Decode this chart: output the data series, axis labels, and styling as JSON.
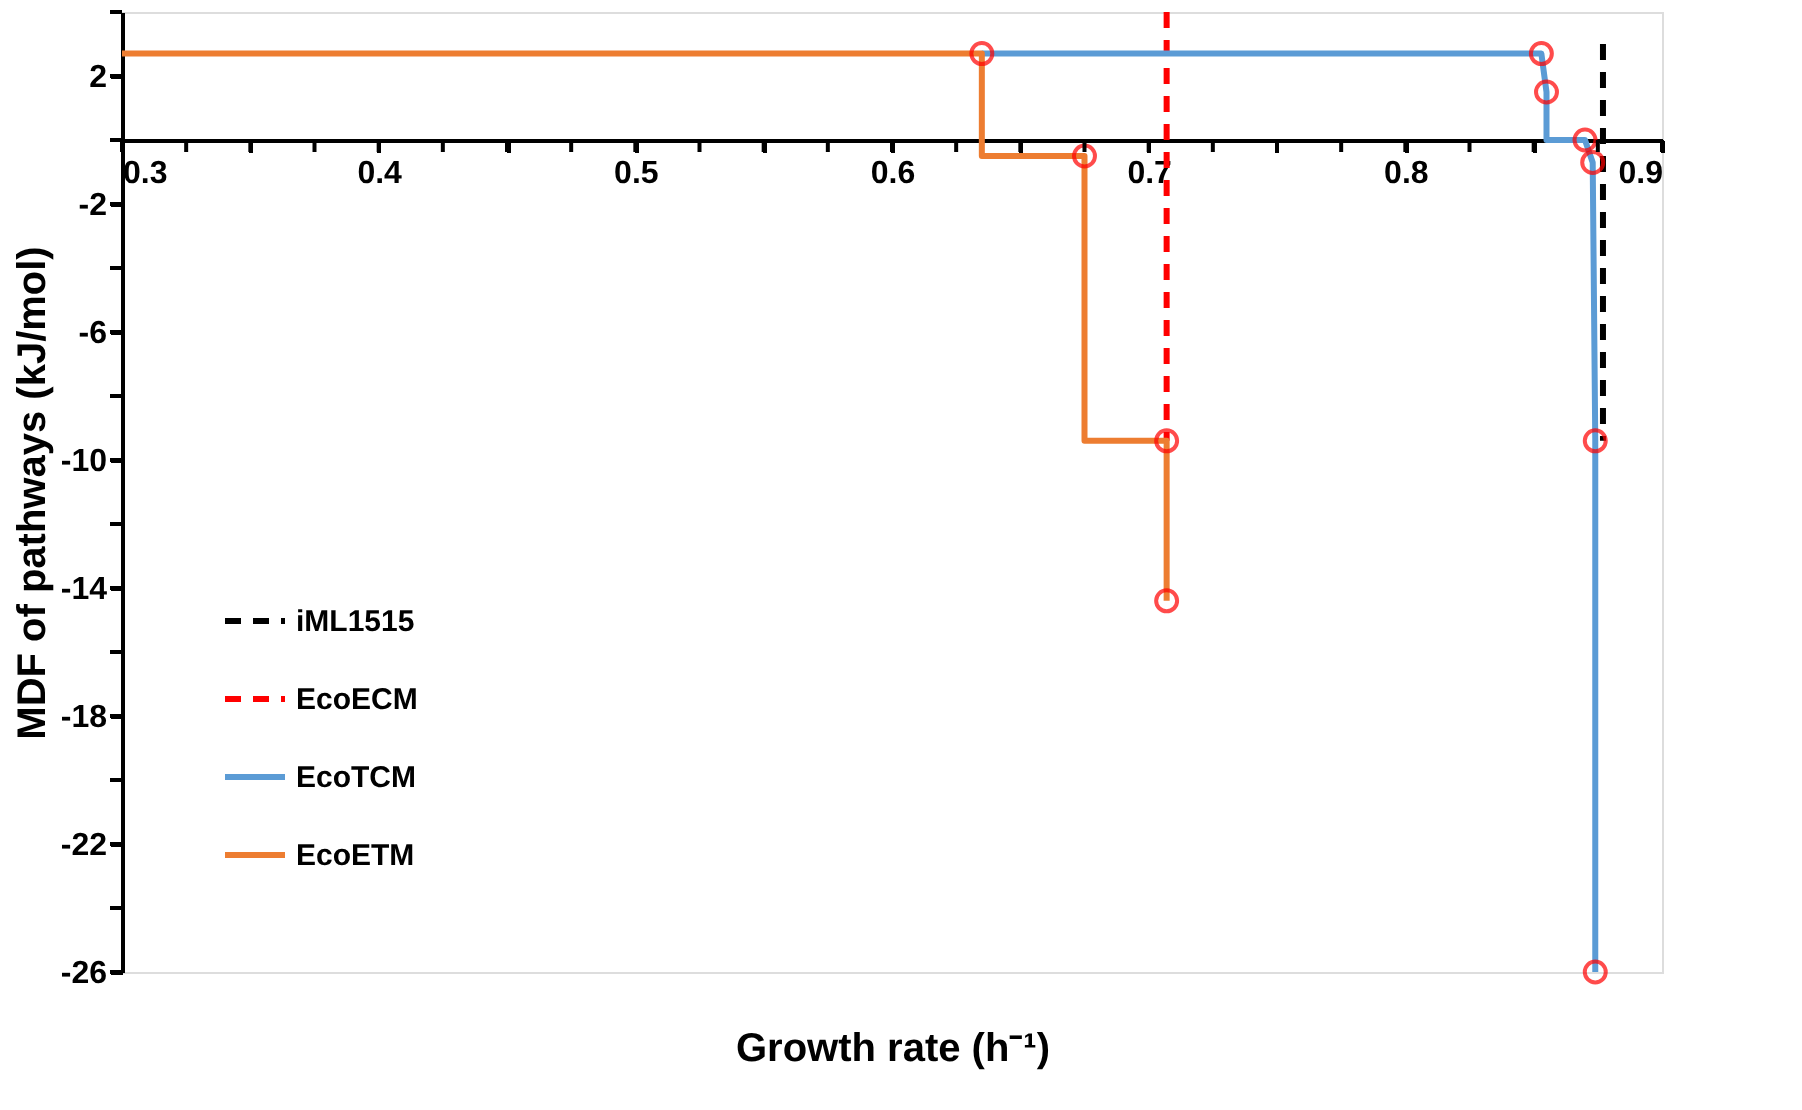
{
  "chart_data": {
    "type": "line",
    "xlabel": "Growth rate (h⁻¹)",
    "ylabel": "MDF of pathways (kJ/mol)",
    "xlim": [
      0.3,
      0.9
    ],
    "ylim": [
      -26,
      4
    ],
    "xticks": [
      0.3,
      {
        "value": 0.325,
        "label": null
      },
      {
        "value": 0.35,
        "label": null
      },
      {
        "value": 0.375,
        "label": null
      },
      0.4,
      {
        "value": 0.425,
        "label": null
      },
      {
        "value": 0.45,
        "label": null
      },
      {
        "value": 0.475,
        "label": null
      },
      0.5,
      {
        "value": 0.525,
        "label": null
      },
      {
        "value": 0.55,
        "label": null
      },
      {
        "value": 0.575,
        "label": null
      },
      0.6,
      {
        "value": 0.625,
        "label": null
      },
      {
        "value": 0.65,
        "label": null
      },
      {
        "value": 0.675,
        "label": null
      },
      0.7,
      {
        "value": 0.725,
        "label": null
      },
      {
        "value": 0.75,
        "label": null
      },
      {
        "value": 0.775,
        "label": null
      },
      0.8,
      {
        "value": 0.825,
        "label": null
      },
      {
        "value": 0.85,
        "label": null
      },
      {
        "value": 0.875,
        "label": null
      },
      0.9
    ],
    "yticks": [
      -26,
      {
        "value": -24,
        "label": null
      },
      -22,
      {
        "value": -20,
        "label": null
      },
      -18,
      {
        "value": -16,
        "label": null
      },
      -14,
      {
        "value": -12,
        "label": null
      },
      -10,
      {
        "value": -8,
        "label": null
      },
      -6,
      {
        "value": -4,
        "label": null
      },
      -2,
      {
        "value": 0,
        "label": null
      },
      2,
      {
        "value": 4,
        "label": null
      }
    ],
    "grid": false,
    "legend": "bottom left",
    "series": [
      {
        "name": "iML1515",
        "type": "line",
        "line_style": "dashed",
        "marker": "none",
        "color": "#000000",
        "x": [
          0.877,
          0.877
        ],
        "values": [
          3.0,
          -9.4
        ]
      },
      {
        "name": "EcoECM",
        "type": "line",
        "line_style": "dashed",
        "marker": "none",
        "color": "#ff0000",
        "x": [
          0.707,
          0.707
        ],
        "values": [
          4,
          -9.4
        ]
      },
      {
        "name": "EcoTCM",
        "type": "line",
        "line_style": "solid",
        "marker": "none",
        "color": "#5b9bd5",
        "x": [
          0.635,
          0.853,
          0.855,
          0.855,
          0.87,
          0.873,
          0.874,
          0.874
        ],
        "values": [
          2.7,
          2.7,
          1.5,
          0,
          0,
          -0.7,
          -9.4,
          -26
        ]
      },
      {
        "name": "EcoETM",
        "type": "line",
        "line_style": "solid",
        "marker": "none",
        "color": "#ed7d31",
        "x": [
          0.3,
          0.635,
          0.635,
          0.675,
          0.675,
          0.707,
          0.707
        ],
        "values": [
          2.7,
          2.7,
          -0.5,
          -0.5,
          -9.4,
          -9.4,
          -14.4
        ]
      },
      {
        "type": "scatter",
        "marker": "circle",
        "color": "#ff0000",
        "x": [
          0.635,
          0.675,
          0.707,
          0.707,
          0.853,
          0.855,
          0.87,
          0.873,
          0.874,
          0.874
        ],
        "values": [
          2.7,
          -0.5,
          -9.4,
          -14.4,
          2.7,
          1.5,
          0,
          -0.7,
          -9.4,
          -26
        ]
      }
    ]
  }
}
